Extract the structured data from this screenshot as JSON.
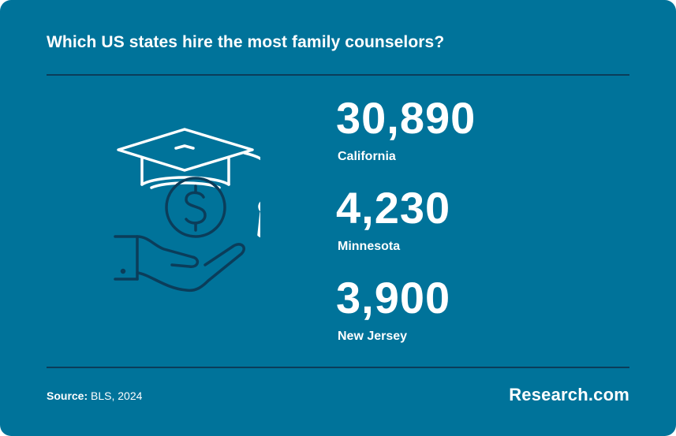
{
  "header": {
    "title": "Which US states hire the most family counselors?"
  },
  "stats": [
    {
      "value": "30,890",
      "label": "California"
    },
    {
      "value": "4,230",
      "label": "Minnesota"
    },
    {
      "value": "3,900",
      "label": "New Jersey"
    }
  ],
  "footer": {
    "source_label": "Source:",
    "source_text": "BLS, 2024",
    "brand": "Research.com"
  },
  "icons": {
    "illustration": "graduation-cap-hand-dollar-icon"
  },
  "colors": {
    "background": "#00739a",
    "line_art": "#0b3d5a",
    "text": "#ffffff"
  }
}
